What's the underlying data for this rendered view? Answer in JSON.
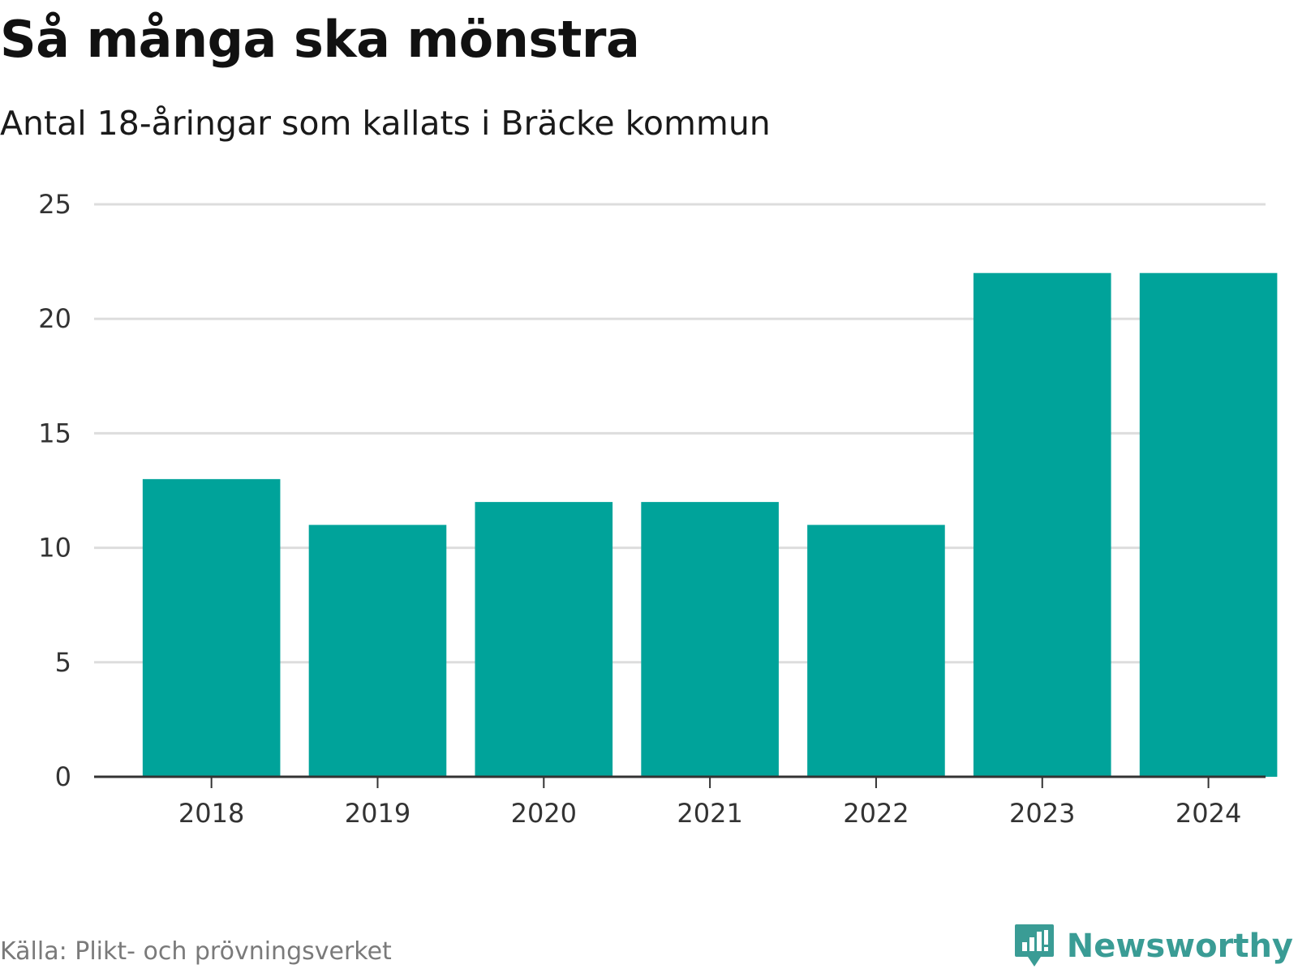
{
  "header": {
    "title": "Så många ska mönstra",
    "subtitle": "Antal 18-åringar som kallats i Bräcke kommun"
  },
  "footer": {
    "source": "Källa: Plikt- och prövningsverket",
    "brand": "Newsworthy"
  },
  "colors": {
    "bar": "#00a39a",
    "brand": "#3a9c95",
    "grid": "#dddddd",
    "axis": "#333333"
  },
  "chart_data": {
    "type": "bar",
    "title": "Så många ska mönstra",
    "subtitle": "Antal 18-åringar som kallats i Bräcke kommun",
    "xlabel": "",
    "ylabel": "",
    "categories": [
      "2018",
      "2019",
      "2020",
      "2021",
      "2022",
      "2023",
      "2024"
    ],
    "values": [
      13,
      11,
      12,
      12,
      11,
      22,
      22
    ],
    "ylim": [
      0,
      25
    ],
    "yticks": [
      0,
      5,
      10,
      15,
      20,
      25
    ],
    "grid": true,
    "legend": "none"
  }
}
